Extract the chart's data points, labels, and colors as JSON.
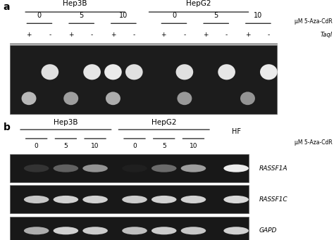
{
  "white": "#ffffff",
  "panel_a": {
    "label": "a",
    "title_hep3b": "Hep3B",
    "title_hepg2": "HepG2",
    "label_um": "μM 5-Aza-CdR",
    "label_taqi": "TaqI",
    "conc_labels": [
      "0",
      "5",
      "10",
      "0",
      "5",
      "10"
    ],
    "taqi_signs": [
      "+",
      "-",
      "+",
      "-",
      "+",
      "-",
      "+",
      "-",
      "+",
      "-",
      "+",
      "-"
    ],
    "upper_intensities": [
      0.0,
      0.88,
      0.0,
      0.9,
      0.92,
      0.88,
      0.0,
      0.88,
      0.0,
      0.9,
      0.0,
      0.92
    ],
    "lower_intensities": [
      0.72,
      0.0,
      0.62,
      0.0,
      0.68,
      0.0,
      0.0,
      0.6,
      0.0,
      0.0,
      0.58,
      0.0
    ]
  },
  "panel_b": {
    "label": "b",
    "title_hep3b": "Hep3B",
    "title_hepg2": "HepG2",
    "title_hf": "HF",
    "label_um": "μM 5-Aza-CdR",
    "conc_labels": [
      "0",
      "5",
      "10",
      "0",
      "5",
      "10"
    ],
    "gene_labels": [
      "RASSF1A",
      "RASSF1C",
      "GAPD"
    ],
    "rassf1a_intensities": [
      0.2,
      0.38,
      0.58,
      0.12,
      0.42,
      0.62,
      0.93
    ],
    "rassf1c_intensities": [
      0.78,
      0.82,
      0.82,
      0.8,
      0.82,
      0.82,
      0.85
    ],
    "gapd_intensities": [
      0.68,
      0.82,
      0.8,
      0.75,
      0.8,
      0.78,
      0.82
    ]
  }
}
